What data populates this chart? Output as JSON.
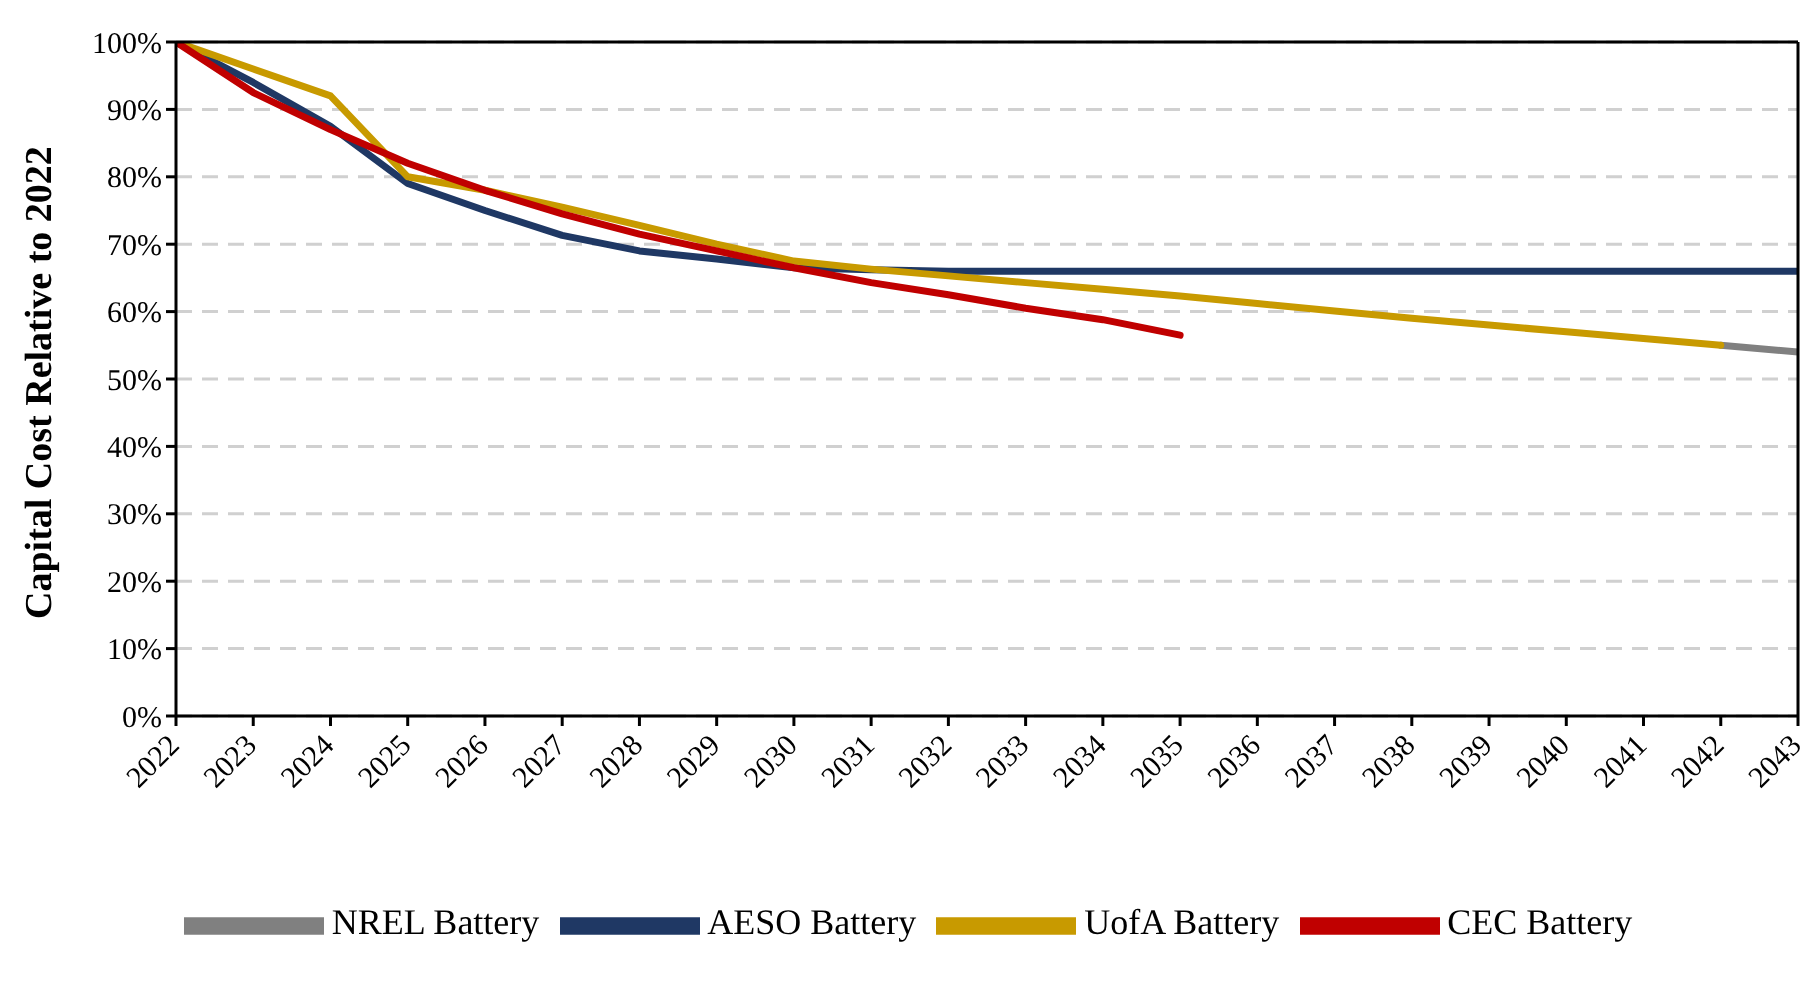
{
  "chart_data": {
    "type": "line",
    "ylabel": "Capital Cost Relative to 2022",
    "x": [
      2022,
      2023,
      2024,
      2025,
      2026,
      2027,
      2028,
      2029,
      2030,
      2031,
      2032,
      2033,
      2034,
      2035,
      2036,
      2037,
      2038,
      2039,
      2040,
      2041,
      2042,
      2043
    ],
    "series": [
      {
        "name": "NREL Battery",
        "color": "#808080",
        "values": [
          null,
          null,
          null,
          null,
          null,
          null,
          null,
          null,
          null,
          null,
          null,
          null,
          null,
          null,
          null,
          null,
          null,
          null,
          null,
          null,
          55,
          54
        ]
      },
      {
        "name": "AESO Battery",
        "color": "#1f3864",
        "values": [
          100,
          94,
          87.5,
          79,
          75,
          71.3,
          69,
          67.8,
          66.5,
          66.2,
          66,
          66,
          66,
          66,
          66,
          66,
          66,
          66,
          66,
          66,
          66,
          66
        ]
      },
      {
        "name": "UofA Battery",
        "color": "#c89a00",
        "values": [
          100,
          96,
          92,
          80,
          78,
          75.5,
          72.8,
          70,
          67.5,
          66.3,
          65.3,
          64.3,
          63.3,
          62.3,
          61.2,
          60.1,
          59,
          58,
          57,
          56,
          55,
          null
        ]
      },
      {
        "name": "CEC Battery",
        "color": "#c00000",
        "values": [
          100,
          92.5,
          87,
          82,
          78,
          74.5,
          71.5,
          69,
          66.5,
          64.3,
          62.5,
          60.5,
          58.8,
          56.5,
          null,
          null,
          null,
          null,
          null,
          null,
          null,
          null
        ]
      }
    ],
    "xlim": [
      2022,
      2043
    ],
    "xticks": [
      2022,
      2023,
      2024,
      2025,
      2026,
      2027,
      2028,
      2029,
      2030,
      2031,
      2032,
      2033,
      2034,
      2035,
      2036,
      2037,
      2038,
      2039,
      2040,
      2041,
      2042,
      2043
    ],
    "ylim": [
      0,
      100
    ],
    "yticks": [
      {
        "value": 0,
        "label": "0%"
      },
      {
        "value": 10,
        "label": "10%"
      },
      {
        "value": 20,
        "label": "20%"
      },
      {
        "value": 30,
        "label": "30%"
      },
      {
        "value": 40,
        "label": "40%"
      },
      {
        "value": 50,
        "label": "50%"
      },
      {
        "value": 60,
        "label": "60%"
      },
      {
        "value": 70,
        "label": "70%"
      },
      {
        "value": 80,
        "label": "80%"
      },
      {
        "value": 90,
        "label": "90%"
      },
      {
        "value": 100,
        "label": "100%"
      }
    ],
    "grid": "y",
    "legend": "bottom",
    "marker": "none",
    "line_style": "solid"
  }
}
